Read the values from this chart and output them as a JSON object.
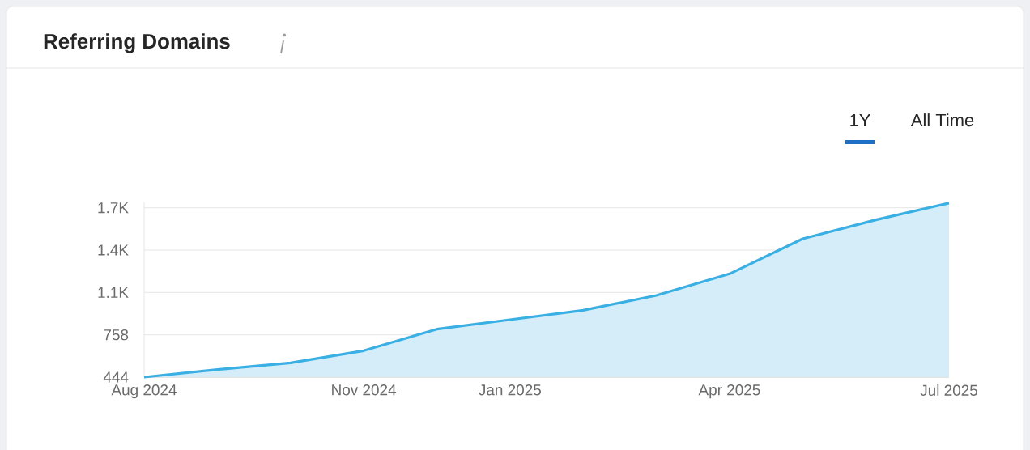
{
  "chart_data": {
    "type": "area",
    "title": "Referring Domains",
    "annotations": [
      "1Y",
      "All Time"
    ],
    "categories": [
      "Aug 2024",
      null,
      null,
      "Nov 2024",
      null,
      "Jan 2025",
      null,
      null,
      "Apr 2025",
      null,
      null,
      "Jul 2025"
    ],
    "series": [
      {
        "color": "#3aafe4",
        "values": [
          444,
          500,
          550,
          640,
          800,
          870,
          940,
          1050,
          1210,
          1470,
          1610,
          1735
        ]
      }
    ],
    "ylim": [
      444,
      1740
    ],
    "yticks": [
      444,
      758,
      {
        "value": 1072,
        "label": "1.1K"
      },
      {
        "value": 1386,
        "label": "1.4K"
      },
      {
        "value": 1700,
        "label": "1.7K"
      }
    ],
    "grid": "y",
    "marker": "none",
    "line_style": "solid"
  }
}
